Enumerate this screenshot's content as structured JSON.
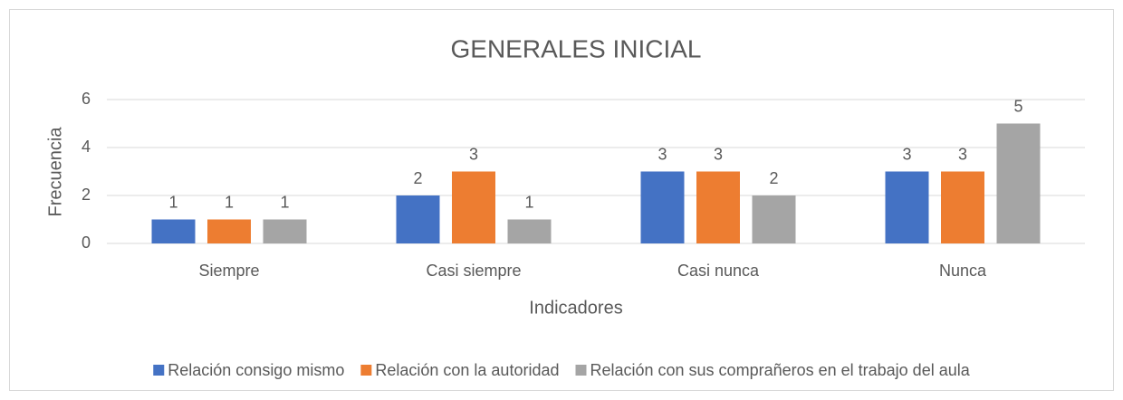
{
  "chart_data": {
    "type": "bar",
    "title": "GENERALES INICIAL",
    "x_label": "Indicadores",
    "y_label": "Frecuencia",
    "categories": [
      "Siempre",
      "Casi siempre",
      "Casi nunca",
      "Nunca"
    ],
    "series": [
      {
        "name": "Relación consigo mismo",
        "color": "#4472c4",
        "values": [
          1,
          2,
          3,
          3
        ]
      },
      {
        "name": "Relación con la autoridad",
        "color": "#ed7d31",
        "values": [
          1,
          3,
          3,
          3
        ]
      },
      {
        "name": "Relación con sus comprañeros en el trabajo del aula",
        "color": "#a5a5a5",
        "values": [
          1,
          1,
          2,
          5
        ]
      }
    ],
    "ylim": [
      0,
      6
    ],
    "yticks": [
      0,
      2,
      4,
      6
    ],
    "grid": true,
    "legend": "bottom"
  }
}
